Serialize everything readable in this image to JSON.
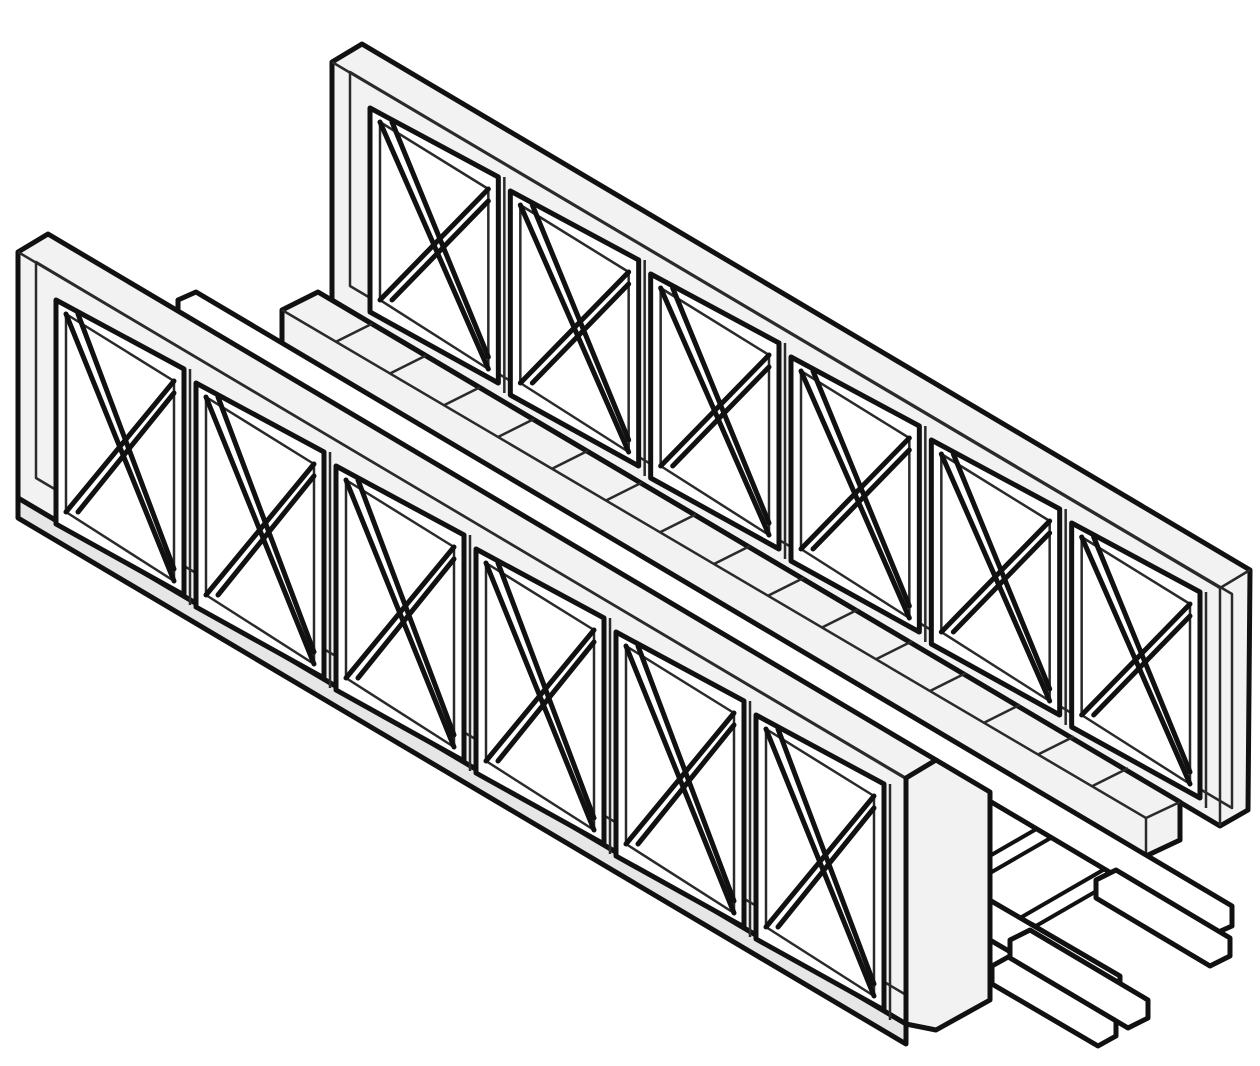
{
  "illustration": {
    "subject": "",
    "truss_panels_per_side": 6,
    "colors": {
      "outline": "#111111",
      "fill": "#f2f2f2",
      "background": "#ffffff"
    }
  }
}
